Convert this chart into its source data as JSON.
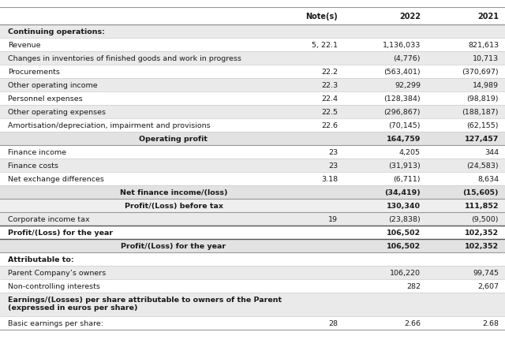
{
  "rows": [
    {
      "label": "Continuing operations:",
      "notes": "",
      "val2022": "",
      "val2021": "",
      "style": "section_header",
      "shade": true
    },
    {
      "label": "Revenue",
      "notes": "5, 22.1",
      "val2022": "1,136,033",
      "val2021": "821,613",
      "style": "normal",
      "shade": false
    },
    {
      "label": "Changes in inventories of finished goods and work in progress",
      "notes": "",
      "val2022": "(4,776)",
      "val2021": "10,713",
      "style": "normal",
      "shade": true
    },
    {
      "label": "Procurements",
      "notes": "22.2",
      "val2022": "(563,401)",
      "val2021": "(370,697)",
      "style": "normal",
      "shade": false
    },
    {
      "label": "Other operating income",
      "notes": "22.3",
      "val2022": "92,299",
      "val2021": "14,989",
      "style": "normal",
      "shade": true
    },
    {
      "label": "Personnel expenses",
      "notes": "22.4",
      "val2022": "(128,384)",
      "val2021": "(98,819)",
      "style": "normal",
      "shade": false
    },
    {
      "label": "Other operating expenses",
      "notes": "22.5",
      "val2022": "(296,867)",
      "val2021": "(188,187)",
      "style": "normal",
      "shade": true
    },
    {
      "label": "Amortisation/depreciation, impairment and provisions",
      "notes": "22.6",
      "val2022": "(70,145)",
      "val2021": "(62,155)",
      "style": "normal",
      "shade": false
    },
    {
      "label": "Operating profit",
      "notes": "",
      "val2022": "164,759",
      "val2021": "127,457",
      "style": "subtotal",
      "shade": true
    },
    {
      "label": "Finance income",
      "notes": "23",
      "val2022": "4,205",
      "val2021": "344",
      "style": "normal",
      "shade": false
    },
    {
      "label": "Finance costs",
      "notes": "23",
      "val2022": "(31,913)",
      "val2021": "(24,583)",
      "style": "normal",
      "shade": true
    },
    {
      "label": "Net exchange differences",
      "notes": "3.18",
      "val2022": "(6,711)",
      "val2021": "8,634",
      "style": "normal",
      "shade": false
    },
    {
      "label": "Net finance income/(loss)",
      "notes": "",
      "val2022": "(34,419)",
      "val2021": "(15,605)",
      "style": "subtotal",
      "shade": true
    },
    {
      "label": "Profit/(Loss) before tax",
      "notes": "",
      "val2022": "130,340",
      "val2021": "111,852",
      "style": "subtotal",
      "shade": false
    },
    {
      "label": "Corporate income tax",
      "notes": "19",
      "val2022": "(23,838)",
      "val2021": "(9,500)",
      "style": "normal",
      "shade": true
    },
    {
      "label": "Profit/(Loss) for the year",
      "notes": "",
      "val2022": "106,502",
      "val2021": "102,352",
      "style": "bold_line",
      "shade": false
    },
    {
      "label": "Profit/(Loss) for the year",
      "notes": "",
      "val2022": "106,502",
      "val2021": "102,352",
      "style": "subtotal",
      "shade": true
    },
    {
      "label": "Attributable to:",
      "notes": "",
      "val2022": "",
      "val2021": "",
      "style": "section_header",
      "shade": false
    },
    {
      "label": "Parent Company’s owners",
      "notes": "",
      "val2022": "106,220",
      "val2021": "99,745",
      "style": "normal",
      "shade": true
    },
    {
      "label": "Non-controlling interests",
      "notes": "",
      "val2022": "282",
      "val2021": "2,607",
      "style": "normal",
      "shade": false
    },
    {
      "label": "Earnings/(Losses) per share attributable to owners of the Parent\n(expressed in euros per share)",
      "notes": "",
      "val2022": "",
      "val2021": "",
      "style": "bold_section",
      "shade": true
    },
    {
      "label": "Basic earnings per share:",
      "notes": "28",
      "val2022": "2.66",
      "val2021": "2.68",
      "style": "normal",
      "shade": false
    }
  ],
  "header_labels": [
    "Note(s)",
    "2022",
    "2021"
  ],
  "bg_white": "#ffffff",
  "bg_shade": "#eaeaea",
  "bg_subtotal_shade": "#e2e2e2",
  "bg_subtotal_white": "#efefef",
  "color_text": "#1a1a1a",
  "font_size": 6.8,
  "header_font_size": 7.0,
  "line_color_heavy": "#999999",
  "line_color_light": "#cccccc"
}
